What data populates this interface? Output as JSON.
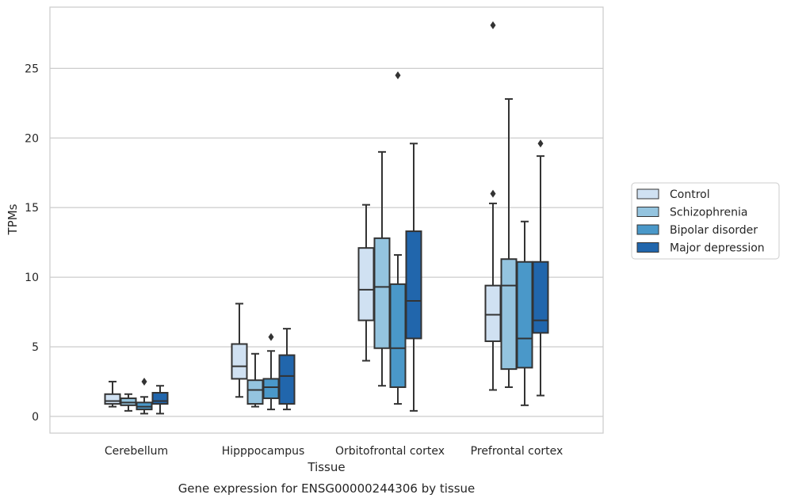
{
  "chart_data": {
    "type": "box",
    "caption": "Gene expression for ENSG00000244306 by tissue",
    "xlabel": "Tissue",
    "ylabel": "TPMs",
    "ylim": [
      -1.2,
      29.4
    ],
    "yticks": [
      0,
      5,
      10,
      15,
      20,
      25
    ],
    "grid": true,
    "legend_position": "right",
    "categories": [
      "Cerebellum",
      "Hipppocampus",
      "Orbitofrontal cortex",
      "Prefrontal cortex"
    ],
    "series": [
      {
        "name": "Control",
        "color": "#d0e1f2",
        "boxes": [
          {
            "whisker_low": 0.7,
            "q1": 0.9,
            "median": 1.1,
            "q3": 1.6,
            "whisker_high": 2.5,
            "outliers": []
          },
          {
            "whisker_low": 1.4,
            "q1": 2.7,
            "median": 3.6,
            "q3": 5.2,
            "whisker_high": 8.1,
            "outliers": []
          },
          {
            "whisker_low": 4.0,
            "q1": 6.9,
            "median": 9.1,
            "q3": 12.1,
            "whisker_high": 15.2,
            "outliers": []
          },
          {
            "whisker_low": 1.9,
            "q1": 5.4,
            "median": 7.3,
            "q3": 9.4,
            "whisker_high": 15.3,
            "outliers": [
              16.0,
              28.1
            ]
          }
        ]
      },
      {
        "name": "Schizophrenia",
        "color": "#94c4df",
        "boxes": [
          {
            "whisker_low": 0.4,
            "q1": 0.8,
            "median": 1.0,
            "q3": 1.3,
            "whisker_high": 1.6,
            "outliers": []
          },
          {
            "whisker_low": 0.7,
            "q1": 0.9,
            "median": 1.9,
            "q3": 2.6,
            "whisker_high": 4.5,
            "outliers": []
          },
          {
            "whisker_low": 2.2,
            "q1": 4.9,
            "median": 9.3,
            "q3": 12.8,
            "whisker_high": 19.0,
            "outliers": []
          },
          {
            "whisker_low": 2.1,
            "q1": 3.4,
            "median": 9.4,
            "q3": 11.3,
            "whisker_high": 22.8,
            "outliers": []
          }
        ]
      },
      {
        "name": "Bipolar disorder",
        "color": "#4a98c9",
        "boxes": [
          {
            "whisker_low": 0.2,
            "q1": 0.5,
            "median": 0.7,
            "q3": 1.0,
            "whisker_high": 1.4,
            "outliers": [
              2.5
            ]
          },
          {
            "whisker_low": 0.5,
            "q1": 1.3,
            "median": 2.1,
            "q3": 2.7,
            "whisker_high": 4.7,
            "outliers": [
              5.7
            ]
          },
          {
            "whisker_low": 0.9,
            "q1": 2.1,
            "median": 4.9,
            "q3": 9.5,
            "whisker_high": 11.6,
            "outliers": [
              24.5
            ]
          },
          {
            "whisker_low": 0.8,
            "q1": 3.5,
            "median": 5.6,
            "q3": 11.1,
            "whisker_high": 14.0,
            "outliers": []
          }
        ]
      },
      {
        "name": "Major depression",
        "color": "#2166ac",
        "boxes": [
          {
            "whisker_low": 0.2,
            "q1": 0.9,
            "median": 1.1,
            "q3": 1.7,
            "whisker_high": 2.2,
            "outliers": []
          },
          {
            "whisker_low": 0.5,
            "q1": 0.9,
            "median": 2.9,
            "q3": 4.4,
            "whisker_high": 6.3,
            "outliers": []
          },
          {
            "whisker_low": 0.4,
            "q1": 5.6,
            "median": 8.3,
            "q3": 13.3,
            "whisker_high": 19.6,
            "outliers": []
          },
          {
            "whisker_low": 1.5,
            "q1": 6.0,
            "median": 6.9,
            "q3": 11.1,
            "whisker_high": 18.7,
            "outliers": [
              19.6
            ]
          }
        ]
      }
    ]
  }
}
